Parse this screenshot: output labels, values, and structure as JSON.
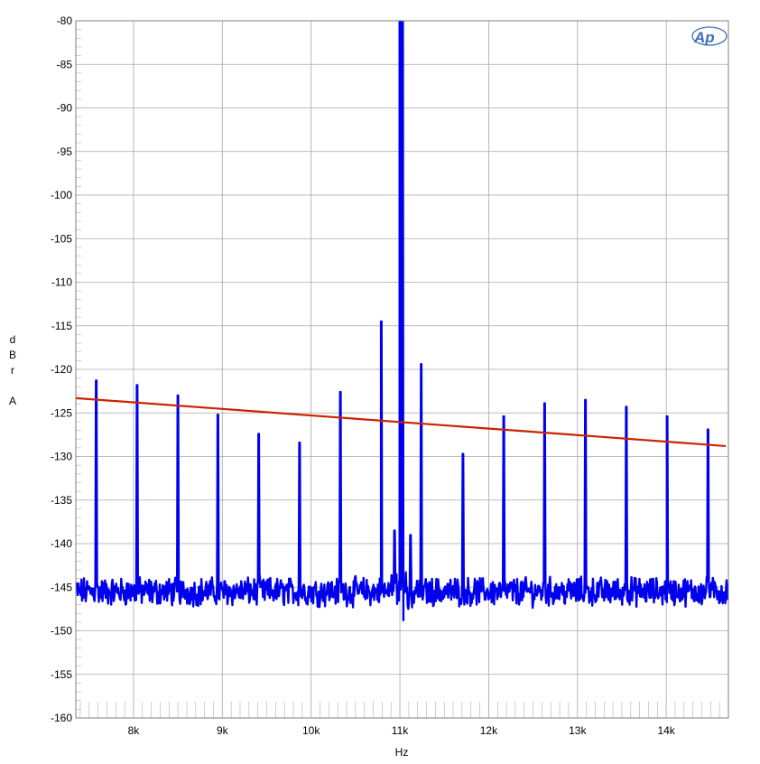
{
  "chart_data": {
    "type": "line",
    "xlabel": "Hz",
    "ylabel": "dBr A",
    "ylabel_chars": [
      "d",
      "B",
      "r",
      "",
      "A"
    ],
    "xlim": [
      7350,
      14700
    ],
    "ylim": [
      -160,
      -80
    ],
    "x_ticks": [
      {
        "value": 8000,
        "label": "8k"
      },
      {
        "value": 9000,
        "label": "9k"
      },
      {
        "value": 10000,
        "label": "10k"
      },
      {
        "value": 11000,
        "label": "11k"
      },
      {
        "value": 12000,
        "label": "12k"
      },
      {
        "value": 13000,
        "label": "13k"
      },
      {
        "value": 14000,
        "label": "14k"
      }
    ],
    "y_ticks": [
      -80,
      -85,
      -90,
      -95,
      -100,
      -105,
      -110,
      -115,
      -120,
      -125,
      -130,
      -135,
      -140,
      -145,
      -150,
      -155,
      -160
    ],
    "y_tick_labels": [
      "-80",
      "-85",
      "-90",
      "-95",
      "-100",
      "-105",
      "-110",
      "-115",
      "-120",
      "-125",
      "-130",
      "-135",
      "-140",
      "-145",
      "-150",
      "-155",
      "-160"
    ],
    "grid": true,
    "legend": "none",
    "noise_floor": -145.5,
    "series": [
      {
        "color": "#0000ee",
        "peaks": [
          [
            7580,
            -123.3
          ],
          [
            8040,
            -123.8
          ],
          [
            8500,
            -125.0
          ],
          [
            8950,
            -127.2
          ],
          [
            9410,
            -129.4
          ],
          [
            9870,
            -130.4
          ],
          [
            10330,
            -124.6
          ],
          [
            10790,
            -116.5
          ],
          [
            10940,
            -140.5
          ],
          [
            11000,
            -80.0
          ],
          [
            11030,
            -80.0
          ],
          [
            11120,
            -141.0
          ],
          [
            11240,
            -121.4
          ],
          [
            11710,
            -131.7
          ],
          [
            12170,
            -127.4
          ],
          [
            12630,
            -125.9
          ],
          [
            13090,
            -125.5
          ],
          [
            13550,
            -126.3
          ],
          [
            14010,
            -127.4
          ],
          [
            14470,
            -128.9
          ]
        ]
      },
      {
        "color": "#cc2200",
        "points": [
          [
            7350,
            -123.3
          ],
          [
            14670,
            -128.8
          ]
        ]
      }
    ]
  },
  "logo": {
    "text": "Ap"
  }
}
